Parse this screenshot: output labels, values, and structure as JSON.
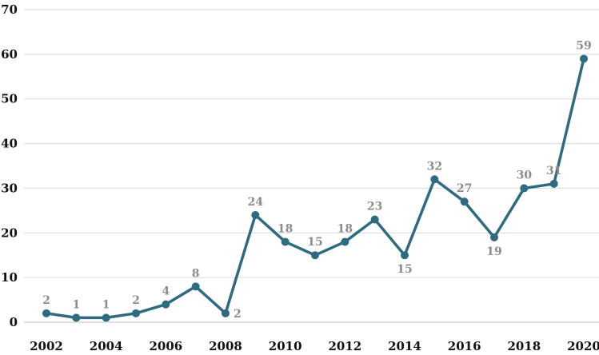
{
  "chart_data": {
    "type": "line",
    "title": "",
    "xlabel": "",
    "ylabel": "",
    "x": [
      2002,
      2003,
      2004,
      2005,
      2006,
      2007,
      2008,
      2009,
      2010,
      2011,
      2012,
      2013,
      2014,
      2015,
      2016,
      2017,
      2018,
      2019,
      2020
    ],
    "values": [
      2,
      1,
      1,
      2,
      4,
      8,
      2,
      24,
      18,
      15,
      18,
      23,
      15,
      32,
      27,
      19,
      30,
      31,
      59
    ],
    "x_tick_labels": [
      "2002",
      "2004",
      "2006",
      "2008",
      "2010",
      "2012",
      "2014",
      "2016",
      "2018",
      "2020"
    ],
    "y_ticks": [
      0,
      10,
      20,
      30,
      40,
      50,
      60,
      70
    ],
    "ylim": [
      0,
      70
    ],
    "grid": "horizontal",
    "legend": "none",
    "line_color": "#2e6b80",
    "label_color": "#8c8c8c",
    "label_positions": [
      "above",
      "above",
      "above",
      "above",
      "above",
      "above",
      "right",
      "above",
      "above",
      "above",
      "above",
      "above",
      "below",
      "above",
      "above",
      "below",
      "above",
      "above",
      "above"
    ]
  }
}
